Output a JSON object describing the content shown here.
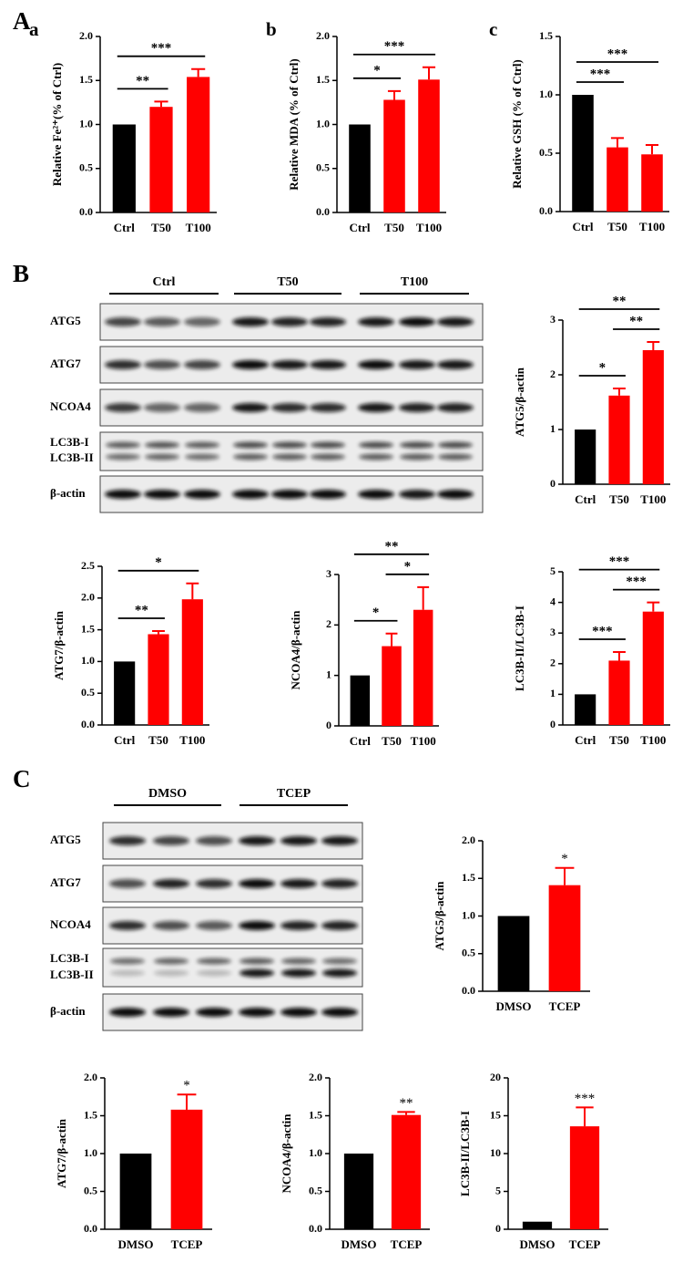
{
  "panel_labels": [
    "A",
    "B",
    "C"
  ],
  "blots": [
    {
      "groups": [
        "Ctrl",
        "T50",
        "T100"
      ],
      "rows": [
        "ATG5",
        "ATG7",
        "NCOA4",
        "LC3B-I",
        "LC3B-II",
        "β-actin"
      ]
    },
    {
      "groups": [
        "DMSO",
        "TCEP"
      ],
      "rows": [
        "ATG5",
        "ATG7",
        "NCOA4",
        "LC3B-I",
        "LC3B-II",
        "β-actin"
      ]
    }
  ],
  "chart_data": [
    {
      "type": "bar",
      "panel_label": "a",
      "ylabel": "Relative Fe²⁺(% of Ctrl)",
      "categories": [
        "Ctrl",
        "T50",
        "T100"
      ],
      "values": [
        1,
        1.2,
        1.54
      ],
      "errors": [
        null,
        0.06,
        0.09
      ],
      "colors": [
        "#000000",
        "#ff0000",
        "#ff0000"
      ],
      "ylim": [
        0,
        2
      ],
      "yticks": [
        {
          "value": 0,
          "label": "0.0"
        },
        0.5,
        {
          "value": 1,
          "label": "1.0"
        },
        1.5,
        {
          "value": 2,
          "label": "2.0"
        }
      ],
      "annotations": [
        {
          "text": "**",
          "pair": [
            0,
            1
          ]
        },
        {
          "text": "***",
          "pair": [
            0,
            2
          ]
        }
      ]
    },
    {
      "type": "bar",
      "panel_label": "b",
      "ylabel": "Relative MDA (% of Ctrl)",
      "categories": [
        "Ctrl",
        "T50",
        "T100"
      ],
      "values": [
        1,
        1.28,
        1.51
      ],
      "errors": [
        null,
        0.1,
        0.14
      ],
      "colors": [
        "#000000",
        "#ff0000",
        "#ff0000"
      ],
      "ylim": [
        0,
        2
      ],
      "yticks": [
        {
          "value": 0,
          "label": "0.0"
        },
        0.5,
        {
          "value": 1,
          "label": "1.0"
        },
        1.5,
        {
          "value": 2,
          "label": "2.0"
        }
      ],
      "annotations": [
        {
          "text": "*",
          "pair": [
            0,
            1
          ]
        },
        {
          "text": "***",
          "pair": [
            0,
            2
          ]
        }
      ]
    },
    {
      "type": "bar",
      "panel_label": "c",
      "ylabel": "Relative GSH (% of Ctrl)",
      "categories": [
        "Ctrl",
        "T50",
        "T100"
      ],
      "values": [
        1,
        0.55,
        0.49
      ],
      "errors": [
        null,
        0.08,
        0.08
      ],
      "colors": [
        "#000000",
        "#ff0000",
        "#ff0000"
      ],
      "ylim": [
        0,
        1.5
      ],
      "yticks": [
        {
          "value": 0,
          "label": "0.0"
        },
        0.5,
        {
          "value": 1,
          "label": "1.0"
        },
        1.5
      ],
      "annotations": [
        {
          "text": "***",
          "pair": [
            0,
            1
          ]
        },
        {
          "text": "***",
          "pair": [
            0,
            2
          ]
        }
      ]
    },
    {
      "type": "bar",
      "ylabel": "ATG5/β-actin",
      "categories": [
        "Ctrl",
        "T50",
        "T100"
      ],
      "values": [
        1,
        1.62,
        2.45
      ],
      "errors": [
        null,
        0.13,
        0.15
      ],
      "colors": [
        "#000000",
        "#ff0000",
        "#ff0000"
      ],
      "ylim": [
        0,
        3
      ],
      "yticks": [
        0,
        1,
        2,
        3
      ],
      "annotations": [
        {
          "text": "*",
          "pair": [
            0,
            1
          ]
        },
        {
          "text": "**",
          "pair": [
            1,
            2
          ]
        },
        {
          "text": "**",
          "pair": [
            0,
            2
          ]
        }
      ]
    },
    {
      "type": "bar",
      "ylabel": "ATG7/β-actin",
      "categories": [
        "Ctrl",
        "T50",
        "T100"
      ],
      "values": [
        1,
        1.43,
        1.98
      ],
      "errors": [
        null,
        0.05,
        0.25
      ],
      "colors": [
        "#000000",
        "#ff0000",
        "#ff0000"
      ],
      "ylim": [
        0,
        2.5
      ],
      "yticks": [
        {
          "value": 0,
          "label": "0.0"
        },
        0.5,
        {
          "value": 1,
          "label": "1.0"
        },
        1.5,
        {
          "value": 2,
          "label": "2.0"
        },
        2.5
      ],
      "annotations": [
        {
          "text": "**",
          "pair": [
            0,
            1
          ]
        },
        {
          "text": "*",
          "pair": [
            0,
            2
          ]
        }
      ]
    },
    {
      "type": "bar",
      "ylabel": "NCOA4/β-actin",
      "categories": [
        "Ctrl",
        "T50",
        "T100"
      ],
      "values": [
        1,
        1.58,
        2.3
      ],
      "errors": [
        null,
        0.25,
        0.45
      ],
      "colors": [
        "#000000",
        "#ff0000",
        "#ff0000"
      ],
      "ylim": [
        0,
        3
      ],
      "yticks": [
        0,
        1,
        2,
        3
      ],
      "annotations": [
        {
          "text": "*",
          "pair": [
            0,
            1
          ]
        },
        {
          "text": "*",
          "pair": [
            1,
            2
          ]
        },
        {
          "text": "**",
          "pair": [
            0,
            2
          ]
        }
      ]
    },
    {
      "type": "bar",
      "ylabel": "LC3B-II/LC3B-I",
      "categories": [
        "Ctrl",
        "T50",
        "T100"
      ],
      "values": [
        1,
        2.1,
        3.7
      ],
      "errors": [
        null,
        0.28,
        0.3
      ],
      "colors": [
        "#000000",
        "#ff0000",
        "#ff0000"
      ],
      "ylim": [
        0,
        5
      ],
      "yticks": [
        0,
        1,
        2,
        3,
        4,
        5
      ],
      "annotations": [
        {
          "text": "***",
          "pair": [
            0,
            1
          ]
        },
        {
          "text": "***",
          "pair": [
            1,
            2
          ]
        },
        {
          "text": "***",
          "pair": [
            0,
            2
          ]
        }
      ]
    },
    {
      "type": "bar",
      "ylabel": "ATG5/β-actin",
      "categories": [
        "DMSO",
        "TCEP"
      ],
      "values": [
        1,
        1.41
      ],
      "errors": [
        null,
        0.23
      ],
      "colors": [
        "#000000",
        "#ff0000"
      ],
      "ylim": [
        0,
        2
      ],
      "yticks": [
        {
          "value": 0,
          "label": "0.0"
        },
        0.5,
        {
          "value": 1,
          "label": "1.0"
        },
        1.5,
        {
          "value": 2,
          "label": "2.0"
        }
      ],
      "annotations": [
        {
          "text": "*",
          "at": 1
        }
      ]
    },
    {
      "type": "bar",
      "ylabel": "ATG7/β-actin",
      "categories": [
        "DMSO",
        "TCEP"
      ],
      "values": [
        1,
        1.58
      ],
      "errors": [
        null,
        0.2
      ],
      "colors": [
        "#000000",
        "#ff0000"
      ],
      "ylim": [
        0,
        2
      ],
      "yticks": [
        {
          "value": 0,
          "label": "0.0"
        },
        0.5,
        {
          "value": 1,
          "label": "1.0"
        },
        1.5,
        {
          "value": 2,
          "label": "2.0"
        }
      ],
      "annotations": [
        {
          "text": "*",
          "at": 1
        }
      ]
    },
    {
      "type": "bar",
      "ylabel": "NCOA4/β-actin",
      "categories": [
        "DMSO",
        "TCEP"
      ],
      "values": [
        1,
        1.51
      ],
      "errors": [
        null,
        0.04
      ],
      "colors": [
        "#000000",
        "#ff0000"
      ],
      "ylim": [
        0,
        2
      ],
      "yticks": [
        {
          "value": 0,
          "label": "0.0"
        },
        0.5,
        {
          "value": 1,
          "label": "1.0"
        },
        1.5,
        {
          "value": 2,
          "label": "2.0"
        }
      ],
      "annotations": [
        {
          "text": "**",
          "at": 1
        }
      ]
    },
    {
      "type": "bar",
      "ylabel": "LC3B-II/LC3B-I",
      "categories": [
        "DMSO",
        "TCEP"
      ],
      "values": [
        1,
        13.6
      ],
      "errors": [
        null,
        2.5
      ],
      "colors": [
        "#000000",
        "#ff0000"
      ],
      "ylim": [
        0,
        20
      ],
      "yticks": [
        0,
        5,
        10,
        15,
        20
      ],
      "annotations": [
        {
          "text": "***",
          "at": 1
        }
      ]
    }
  ]
}
